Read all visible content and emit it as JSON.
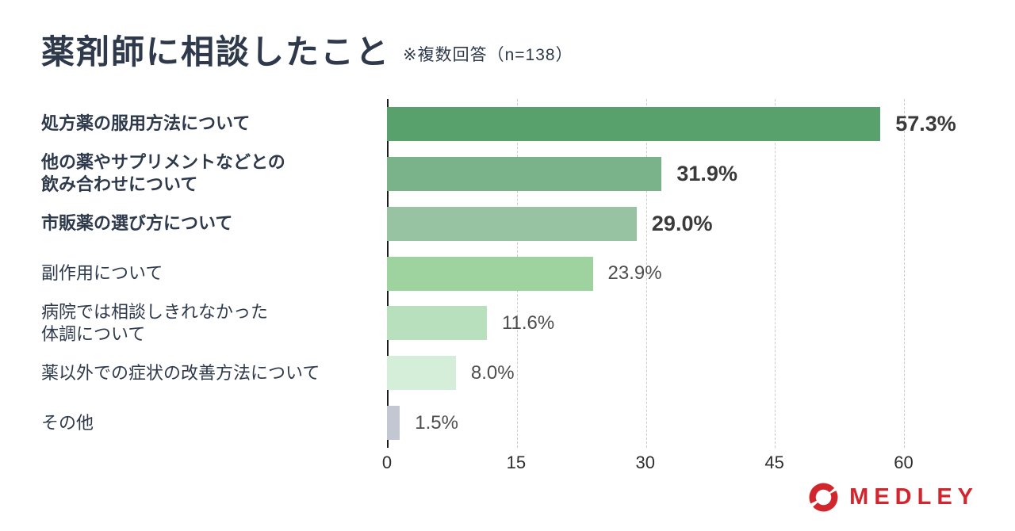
{
  "header": {
    "title": "薬剤師に相談したこと",
    "note": "※複数回答（n=138）",
    "text_color": "#2e3a4c"
  },
  "chart_data": {
    "type": "bar",
    "orientation": "horizontal",
    "title": "薬剤師に相談したこと",
    "subtitle": "※複数回答（n=138）",
    "categories": [
      "処方薬の服用方法について",
      "他の薬やサプリメントなどとの\n飲み合わせについて",
      "市販薬の選び方について",
      "副作用について",
      "病院では相談しきれなかった\n体調について",
      "薬以外での症状の改善方法について",
      "その他"
    ],
    "values": [
      57.3,
      31.9,
      29.0,
      23.9,
      11.6,
      8.0,
      1.5
    ],
    "value_labels": [
      "57.3%",
      "31.9%",
      "29.0%",
      "23.9%",
      "11.6%",
      "8.0%",
      "1.5%"
    ],
    "emphasized": [
      true,
      true,
      true,
      false,
      false,
      false,
      false
    ],
    "bar_colors": [
      "#58a16c",
      "#7ab389",
      "#98c3a2",
      "#9ed3a0",
      "#b8e0bc",
      "#d5eed9",
      "#c2c7d2"
    ],
    "xlabel": "",
    "ylabel": "",
    "xlim": [
      0,
      65.2
    ],
    "x_ticks": [
      0,
      15,
      30,
      45,
      60
    ],
    "grid": "vertical-dashed",
    "legend": "none"
  },
  "footer": {
    "logo_text": "MEDLEY",
    "logo_icon": "ring-swirl-icon",
    "logo_color": "#d2262e"
  }
}
